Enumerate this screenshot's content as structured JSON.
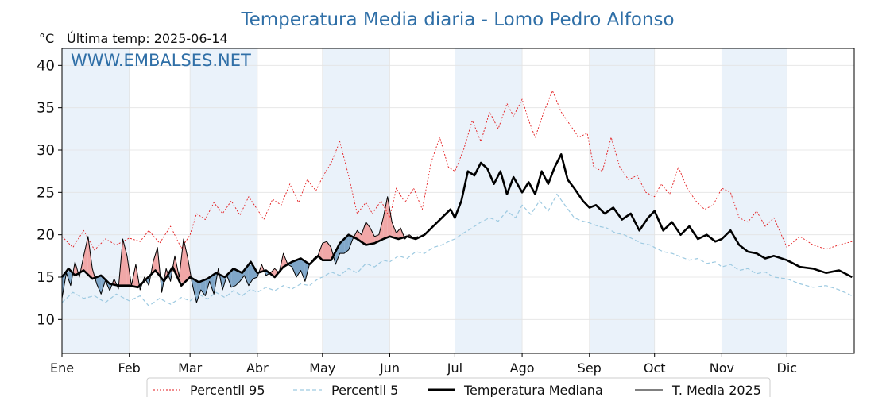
{
  "header": {
    "title": "Temperatura Media diaria - Lomo Pedro Alfonso",
    "unit": "°C",
    "last_temp": "Última temp: 2025-06-14",
    "watermark": "WWW.EMBALSES.NET"
  },
  "chart_data": {
    "type": "line",
    "ylim": [
      6,
      42
    ],
    "yticks": [
      10,
      15,
      20,
      25,
      30,
      35,
      40
    ],
    "xlim": [
      0,
      365
    ],
    "month_labels": [
      "Ene",
      "Feb",
      "Mar",
      "Abr",
      "May",
      "Jun",
      "Jul",
      "Ago",
      "Sep",
      "Oct",
      "Nov",
      "Dic"
    ],
    "month_starts": [
      0,
      31,
      59,
      90,
      120,
      151,
      181,
      212,
      243,
      273,
      304,
      334
    ],
    "grid": true,
    "legend_position": "bottom-center",
    "colors": {
      "p95": "#e31a1c",
      "p5": "#9ecae1",
      "median": "#000000",
      "current": "#000000",
      "above_fill": "#f1a7a7",
      "below_fill": "#7fa6c8",
      "band": "#eaf2fa"
    },
    "series": [
      {
        "key": "p95",
        "name": "Percentil 95",
        "x": [
          0,
          5,
          10,
          15,
          20,
          25,
          31,
          36,
          40,
          45,
          50,
          55,
          59,
          62,
          66,
          70,
          74,
          78,
          82,
          86,
          90,
          93,
          97,
          101,
          105,
          109,
          113,
          117,
          120,
          124,
          128,
          132,
          136,
          140,
          143,
          147,
          151,
          154,
          158,
          162,
          166,
          170,
          174,
          178,
          181,
          185,
          189,
          193,
          197,
          201,
          205,
          208,
          212,
          215,
          218,
          222,
          226,
          230,
          234,
          238,
          242,
          245,
          249,
          253,
          257,
          261,
          265,
          269,
          273,
          276,
          280,
          284,
          288,
          292,
          296,
          300,
          304,
          308,
          312,
          316,
          320,
          324,
          328,
          334,
          340,
          346,
          352,
          358,
          364
        ],
        "values": [
          19.8,
          18.5,
          20.5,
          18.2,
          19.5,
          18.8,
          19.6,
          19.2,
          20.5,
          19.0,
          21.0,
          18.4,
          20.0,
          22.5,
          21.8,
          23.8,
          22.5,
          24.0,
          22.3,
          24.5,
          23.0,
          21.8,
          24.2,
          23.5,
          26.0,
          23.8,
          26.5,
          25.2,
          26.8,
          28.5,
          31.0,
          27.0,
          22.5,
          23.8,
          22.5,
          24.0,
          22.0,
          25.5,
          23.8,
          25.5,
          23.0,
          28.5,
          31.5,
          28.0,
          27.5,
          30.0,
          33.5,
          31.0,
          34.5,
          32.5,
          35.5,
          34.0,
          36.0,
          33.5,
          31.5,
          34.5,
          37.0,
          34.5,
          33.0,
          31.5,
          32.0,
          28.0,
          27.5,
          31.5,
          28.0,
          26.5,
          27.0,
          25.0,
          24.5,
          26.0,
          24.8,
          28.0,
          25.5,
          24.0,
          23.0,
          23.5,
          25.5,
          25.0,
          22.0,
          21.5,
          22.8,
          21.0,
          22.0,
          18.5,
          19.8,
          18.8,
          18.3,
          18.8,
          19.2
        ]
      },
      {
        "key": "p5",
        "name": "Percentil 5",
        "x": [
          0,
          5,
          10,
          15,
          20,
          25,
          31,
          36,
          40,
          45,
          50,
          55,
          59,
          63,
          67,
          71,
          75,
          79,
          83,
          87,
          90,
          94,
          98,
          102,
          106,
          110,
          114,
          118,
          120,
          124,
          128,
          132,
          136,
          140,
          144,
          148,
          151,
          155,
          159,
          163,
          167,
          171,
          175,
          179,
          181,
          185,
          189,
          193,
          197,
          201,
          205,
          209,
          212,
          216,
          220,
          224,
          228,
          232,
          236,
          240,
          243,
          247,
          251,
          255,
          259,
          263,
          267,
          271,
          273,
          277,
          281,
          285,
          289,
          293,
          297,
          301,
          304,
          308,
          312,
          316,
          320,
          324,
          328,
          334,
          340,
          346,
          352,
          358,
          364
        ],
        "values": [
          12.0,
          13.2,
          12.5,
          12.8,
          12.0,
          13.0,
          12.2,
          12.8,
          11.6,
          12.5,
          11.8,
          12.6,
          12.2,
          13.0,
          12.4,
          13.2,
          12.6,
          13.4,
          12.8,
          13.6,
          13.2,
          13.8,
          13.4,
          14.0,
          13.6,
          14.2,
          14.0,
          14.8,
          15.0,
          15.6,
          15.2,
          16.0,
          15.5,
          16.6,
          16.2,
          17.0,
          16.8,
          17.5,
          17.2,
          18.0,
          17.8,
          18.5,
          18.8,
          19.3,
          19.5,
          20.2,
          20.8,
          21.5,
          22.0,
          21.6,
          22.8,
          22.0,
          23.5,
          22.4,
          24.0,
          22.8,
          24.8,
          23.4,
          22.0,
          21.6,
          21.4,
          21.0,
          20.8,
          20.2,
          20.0,
          19.5,
          19.0,
          18.8,
          18.5,
          18.0,
          17.8,
          17.4,
          17.0,
          17.2,
          16.6,
          16.8,
          16.2,
          16.5,
          15.8,
          16.0,
          15.4,
          15.6,
          15.0,
          14.8,
          14.2,
          13.8,
          14.0,
          13.5,
          12.8
        ]
      },
      {
        "key": "median",
        "name": "Temperatura Mediana",
        "x": [
          0,
          3,
          6,
          10,
          14,
          18,
          22,
          26,
          31,
          35,
          39,
          43,
          47,
          51,
          55,
          59,
          63,
          67,
          71,
          75,
          79,
          83,
          87,
          90,
          94,
          98,
          102,
          106,
          110,
          114,
          118,
          120,
          124,
          128,
          132,
          136,
          140,
          144,
          148,
          151,
          155,
          159,
          163,
          167,
          171,
          175,
          179,
          181,
          184,
          187,
          190,
          193,
          196,
          199,
          202,
          205,
          208,
          212,
          215,
          218,
          221,
          224,
          227,
          230,
          233,
          236,
          240,
          243,
          246,
          250,
          254,
          258,
          262,
          266,
          270,
          273,
          277,
          281,
          285,
          289,
          293,
          297,
          301,
          304,
          308,
          312,
          316,
          320,
          324,
          328,
          334,
          340,
          346,
          352,
          358,
          364
        ],
        "values": [
          15.0,
          16.0,
          15.2,
          15.8,
          14.8,
          15.2,
          14.2,
          14.0,
          14.0,
          13.8,
          14.8,
          15.8,
          14.5,
          16.2,
          14.0,
          15.0,
          14.4,
          14.8,
          15.5,
          15.0,
          16.0,
          15.5,
          16.8,
          15.5,
          15.8,
          15.0,
          16.2,
          16.8,
          17.2,
          16.5,
          17.5,
          17.0,
          17.0,
          19.0,
          20.0,
          19.5,
          18.8,
          19.0,
          19.5,
          19.8,
          19.5,
          19.8,
          19.5,
          20.0,
          21.0,
          22.0,
          23.0,
          22.0,
          24.0,
          27.5,
          27.0,
          28.5,
          27.8,
          26.0,
          27.5,
          24.8,
          26.8,
          25.0,
          26.2,
          24.8,
          27.5,
          26.0,
          28.0,
          29.5,
          26.5,
          25.5,
          24.0,
          23.2,
          23.5,
          22.5,
          23.2,
          21.8,
          22.5,
          20.5,
          22.0,
          22.8,
          20.5,
          21.5,
          20.0,
          21.0,
          19.5,
          20.0,
          19.2,
          19.5,
          20.5,
          18.8,
          18.0,
          17.8,
          17.2,
          17.5,
          17.0,
          16.2,
          16.0,
          15.5,
          15.8,
          15.0
        ]
      },
      {
        "key": "current",
        "name": "T. Media 2025",
        "x": [
          0,
          2,
          4,
          6,
          8,
          10,
          12,
          14,
          16,
          18,
          20,
          22,
          24,
          26,
          28,
          30,
          32,
          34,
          36,
          38,
          40,
          42,
          44,
          46,
          48,
          50,
          52,
          54,
          56,
          58,
          60,
          62,
          64,
          66,
          68,
          70,
          72,
          74,
          76,
          78,
          80,
          82,
          84,
          86,
          88,
          90,
          92,
          94,
          96,
          98,
          100,
          102,
          104,
          106,
          108,
          110,
          112,
          114,
          116,
          118,
          120,
          122,
          124,
          126,
          128,
          130,
          132,
          134,
          136,
          138,
          140,
          142,
          144,
          146,
          148,
          150,
          152,
          154,
          156,
          158,
          160,
          162,
          164
        ],
        "values": [
          12.5,
          15.5,
          14.0,
          16.8,
          15.0,
          17.5,
          19.8,
          16.0,
          14.2,
          13.0,
          14.6,
          13.4,
          14.8,
          13.6,
          19.5,
          17.5,
          14.0,
          16.5,
          13.5,
          15.0,
          14.0,
          16.8,
          18.5,
          13.2,
          16.0,
          14.5,
          17.5,
          15.0,
          19.5,
          17.2,
          14.2,
          12.0,
          13.5,
          12.8,
          14.5,
          13.0,
          16.0,
          13.5,
          15.2,
          13.8,
          14.0,
          14.5,
          15.2,
          14.0,
          14.8,
          15.0,
          16.5,
          15.2,
          15.5,
          16.0,
          15.5,
          17.8,
          16.5,
          16.2,
          15.0,
          15.8,
          14.5,
          16.5,
          17.2,
          17.6,
          19.0,
          19.2,
          18.5,
          16.5,
          17.8,
          17.8,
          18.2,
          19.5,
          20.5,
          20.0,
          21.5,
          20.8,
          19.8,
          20.0,
          22.0,
          24.5,
          21.5,
          20.2,
          20.8,
          19.5,
          20.0,
          19.6,
          19.8
        ]
      }
    ]
  }
}
